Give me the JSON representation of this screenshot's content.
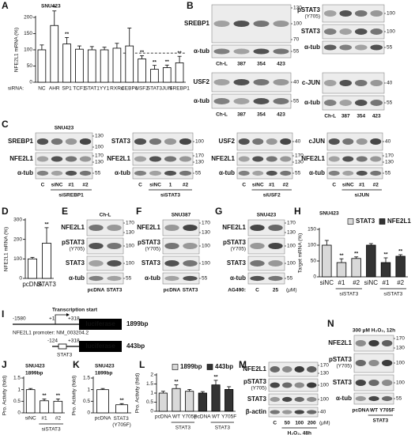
{
  "chart_data": [
    {
      "letter": "A",
      "type": "bar",
      "cell_line": "SNU423",
      "ylabel": "NFE2L1 mRNA (%)",
      "xlabel": "siRNA:",
      "categories": [
        "NC",
        "AHR",
        "SP1",
        "TCF1",
        "STAT1",
        "YY1",
        "RXRα",
        "CEBPδ",
        "USF2",
        "STAT3",
        "JUN",
        "SREBP1"
      ],
      "series": [
        {
          "color": "#ffffff",
          "values": [
            100,
            175,
            118,
            102,
            100,
            100,
            105,
            112,
            72,
            40,
            45,
            60
          ],
          "errors": [
            15,
            45,
            20,
            10,
            10,
            8,
            15,
            55,
            10,
            12,
            8,
            20
          ],
          "sig": [
            null,
            "**",
            "**",
            null,
            null,
            null,
            null,
            null,
            "**",
            "**",
            "**",
            "**"
          ]
        }
      ],
      "ylim": [
        0,
        200
      ],
      "yticks": [
        0,
        50,
        100,
        150,
        200
      ],
      "ref_line": 90
    },
    {
      "letter": "D",
      "type": "bar",
      "ylabel": "NFE2L1 mRNA (%)",
      "categories": [
        "pcDNA",
        "STAT3"
      ],
      "series": [
        {
          "color": "#ffffff",
          "values": [
            100,
            180
          ],
          "errors": [
            8,
            80
          ],
          "sig": [
            null,
            "**"
          ]
        }
      ],
      "ylim": [
        0,
        300
      ],
      "yticks": [
        0,
        100,
        200,
        300
      ]
    },
    {
      "letter": "H",
      "type": "bar",
      "cell_line": "SNU423",
      "ylabel": "Target mRNA (%)",
      "categories": [
        "siNC",
        "#1",
        "#2",
        "siNC",
        "#1",
        "#2"
      ],
      "groups": [
        "siSTAT3",
        "siSTAT3"
      ],
      "series": [
        {
          "name": "STAT3",
          "color": "#d9d9d9",
          "values": [
            100,
            45,
            58,
            null,
            null,
            null
          ],
          "errors": [
            15,
            12,
            5,
            null,
            null,
            null
          ],
          "sig": [
            null,
            "**",
            "**",
            null,
            null,
            null
          ]
        },
        {
          "name": "NFE2L1",
          "color": "#333333",
          "values": [
            null,
            null,
            null,
            100,
            45,
            65
          ],
          "errors": [
            null,
            null,
            null,
            5,
            15,
            5
          ],
          "sig": [
            null,
            null,
            null,
            null,
            "**",
            "**"
          ]
        }
      ],
      "ylim": [
        0,
        150
      ],
      "yticks": [
        0,
        50,
        100,
        150
      ]
    },
    {
      "letter": "J",
      "type": "bar",
      "cell_line": "SNU423",
      "construct": "1899bp",
      "ylabel": "Pro. Activity (fold)",
      "categories": [
        "siNC",
        "#1",
        "#2"
      ],
      "groups": [
        "siSTAT3"
      ],
      "series": [
        {
          "color": "#ffffff",
          "values": [
            1,
            0.52,
            0.5
          ],
          "errors": [
            0.05,
            0.08,
            0.1
          ],
          "sig": [
            null,
            "**",
            "**"
          ]
        }
      ],
      "ylim": [
        0,
        1.5
      ],
      "yticks": [
        0,
        0.5,
        1,
        1.5
      ]
    },
    {
      "letter": "K",
      "type": "bar",
      "cell_line": "SNU423",
      "construct": "1899bp",
      "ylabel": "Pro. Activity (fold)",
      "categories": [
        "pcDNA",
        "STAT3 (Y705F)"
      ],
      "series": [
        {
          "color": "#ffffff",
          "values": [
            1,
            0.35
          ],
          "errors": [
            0.05,
            0.05
          ],
          "sig": [
            null,
            "**"
          ]
        }
      ],
      "ylim": [
        0,
        1.5
      ],
      "yticks": [
        0,
        0.5,
        1,
        1.5
      ]
    },
    {
      "letter": "L",
      "type": "bar",
      "ylabel": "Pro. Activity (fold)",
      "categories": [
        "pcDNA",
        "WT",
        "Y705F",
        "pcDNA",
        "WT",
        "Y705F"
      ],
      "groups": [
        "STAT3",
        "STAT3"
      ],
      "series": [
        {
          "name": "1899bp",
          "color": "#d9d9d9",
          "values": [
            1,
            1.25,
            1.1,
            null,
            null,
            null
          ],
          "errors": [
            0.1,
            0.2,
            0.1,
            null,
            null,
            null
          ],
          "sig": [
            null,
            "**",
            null,
            null,
            null,
            null
          ]
        },
        {
          "name": "443bp",
          "color": "#333333",
          "values": [
            null,
            null,
            null,
            1,
            1.45,
            1.2
          ],
          "errors": [
            null,
            null,
            null,
            0.08,
            0.25,
            0.15
          ],
          "sig": [
            null,
            null,
            null,
            null,
            "**",
            null
          ]
        }
      ],
      "ylim": [
        0,
        2
      ],
      "yticks": [
        0,
        0.5,
        1,
        1.5,
        2
      ]
    }
  ],
  "blots": [
    {
      "letter": "B",
      "parts": [
        {
          "rows": [
            {
              "label": "SREBP1",
              "mw": [
                130,
                100,
                70
              ]
            },
            {
              "label": "α-tub",
              "mw": [
                55
              ]
            }
          ],
          "lanes": [
            "Ch-L",
            "387",
            "354",
            "423"
          ]
        },
        {
          "rows": [
            {
              "label": "pSTAT3",
              "sub": "(Y705)",
              "mw": [
                100
              ]
            },
            {
              "label": "STAT3",
              "mw": [
                100
              ]
            },
            {
              "label": "α-tub",
              "mw": [
                55
              ]
            }
          ]
        },
        {
          "rows": [
            {
              "label": "USF2",
              "mw": [
                40
              ]
            },
            {
              "label": "α-tub",
              "mw": [
                55
              ]
            }
          ],
          "lanes": [
            "Ch-L",
            "387",
            "354",
            "423"
          ]
        },
        {
          "rows": [
            {
              "label": "c-JUN",
              "mw": [
                40
              ]
            },
            {
              "label": "α-tub",
              "mw": [
                55
              ]
            }
          ],
          "lanes": [
            "Ch-L",
            "387",
            "354",
            "423"
          ]
        }
      ]
    },
    {
      "letter": "C",
      "parts": [
        {
          "title": "SNU423",
          "rows": [
            {
              "label": "SREBP1",
              "mw": [
                130,
                100
              ]
            },
            {
              "label": "NFE2L1",
              "mw": [
                170,
                130
              ]
            },
            {
              "label": "α-tub",
              "mw": [
                55
              ]
            }
          ],
          "lanes": [
            "C",
            "siNC",
            "#1",
            "#2"
          ],
          "group": "siSREBP1"
        },
        {
          "rows": [
            {
              "label": "STAT3",
              "mw": [
                100
              ]
            },
            {
              "label": "NFE2L1",
              "mw": [
                170,
                130
              ]
            },
            {
              "label": "α-tub",
              "mw": [
                55
              ]
            }
          ],
          "lanes": [
            "C",
            "siNC",
            "1",
            "#2"
          ],
          "group": "siSTAT3"
        },
        {
          "rows": [
            {
              "label": "USF2",
              "mw": [
                40
              ]
            },
            {
              "label": "NFE2L1",
              "mw": [
                170,
                130
              ]
            },
            {
              "label": "α-tub",
              "mw": [
                55
              ]
            }
          ],
          "lanes": [
            "C",
            "siNC",
            "#1",
            "#2"
          ],
          "group": "siUSF2"
        },
        {
          "rows": [
            {
              "label": "cJUN",
              "mw": [
                40
              ]
            },
            {
              "label": "NFE2L1",
              "mw": [
                170,
                130
              ]
            },
            {
              "label": "α-tub",
              "mw": [
                55
              ]
            }
          ],
          "lanes": [
            "C",
            "siNC",
            "#1",
            "#2"
          ],
          "group": "siJUN"
        }
      ]
    },
    {
      "letter": "E",
      "parts": [
        {
          "title": "Ch-L",
          "rows": [
            {
              "label": "NFE2L1",
              "mw": [
                170,
                130
              ]
            },
            {
              "label": "pSTAT3",
              "sub": "(Y705)",
              "mw": [
                100
              ]
            },
            {
              "label": "STAT3",
              "mw": [
                100
              ]
            },
            {
              "label": "α-tub",
              "mw": [
                55
              ]
            }
          ],
          "lanes": [
            "pcDNA",
            "STAT3"
          ]
        }
      ]
    },
    {
      "letter": "F",
      "parts": [
        {
          "title": "SNU387",
          "rows": [
            {
              "label": "NFE2L1",
              "mw": [
                170,
                130
              ]
            },
            {
              "label": "pSTAT3",
              "sub": "(Y705)",
              "mw": [
                100
              ]
            },
            {
              "label": "STAT3",
              "mw": [
                100
              ]
            },
            {
              "label": "α-tub",
              "mw": [
                55
              ]
            }
          ],
          "lanes": [
            "pcDNA",
            "STAT3"
          ]
        }
      ]
    },
    {
      "letter": "G",
      "parts": [
        {
          "title": "SNU423",
          "rows": [
            {
              "label": "NFE2L1",
              "mw": [
                170,
                130
              ]
            },
            {
              "label": "pSTAT3",
              "sub": "(Y705)",
              "mw": [
                100
              ]
            },
            {
              "label": "STAT3",
              "mw": [
                100
              ]
            },
            {
              "label": "α-tub",
              "mw": [
                55
              ]
            }
          ],
          "lanes_prefix": "AG490:",
          "lanes": [
            "C",
            "25"
          ],
          "lanes_unit": "(μM)"
        }
      ]
    },
    {
      "letter": "M",
      "parts": [
        {
          "rows": [
            {
              "label": "NFE2L1",
              "mw": [
                170,
                130
              ]
            },
            {
              "label": "pSTAT3",
              "sub": "(Y705)",
              "mw": [
                100
              ]
            },
            {
              "label": "STAT3",
              "mw": [
                100
              ]
            },
            {
              "label": "β-actin",
              "mw": [
                40
              ]
            }
          ],
          "lanes": [
            "C",
            "50",
            "100",
            "200"
          ],
          "lanes_unit": "(μM)",
          "group": "H₂O₂, 48h"
        }
      ]
    },
    {
      "letter": "N",
      "parts": [
        {
          "title": "300 μM H₂O₂, 12h",
          "rows": [
            {
              "label": "NFE2L1",
              "mw": [
                170,
                130
              ]
            },
            {
              "label": "pSTAT3",
              "sub": "(Y705)",
              "mw": [
                100
              ]
            },
            {
              "label": "STAT3",
              "mw": [
                100
              ]
            },
            {
              "label": "α-tub",
              "mw": [
                55
              ]
            }
          ],
          "lanes": [
            "pcDNA",
            "WT",
            "Y705F"
          ],
          "group": "STAT3"
        }
      ]
    }
  ],
  "diagram": {
    "letter": "I",
    "long": {
      "start": "-1580",
      "tss": "Transcription start",
      "plus1": "+1",
      "end": "+318",
      "reporter": "luciferase",
      "size": "1899bp",
      "promoter": "NFE2L1 promoter: NM_003204.2"
    },
    "short": {
      "start": "-124",
      "end": "+318",
      "reporter": "luciferase",
      "size": "443bp",
      "site": "STAT3"
    }
  }
}
